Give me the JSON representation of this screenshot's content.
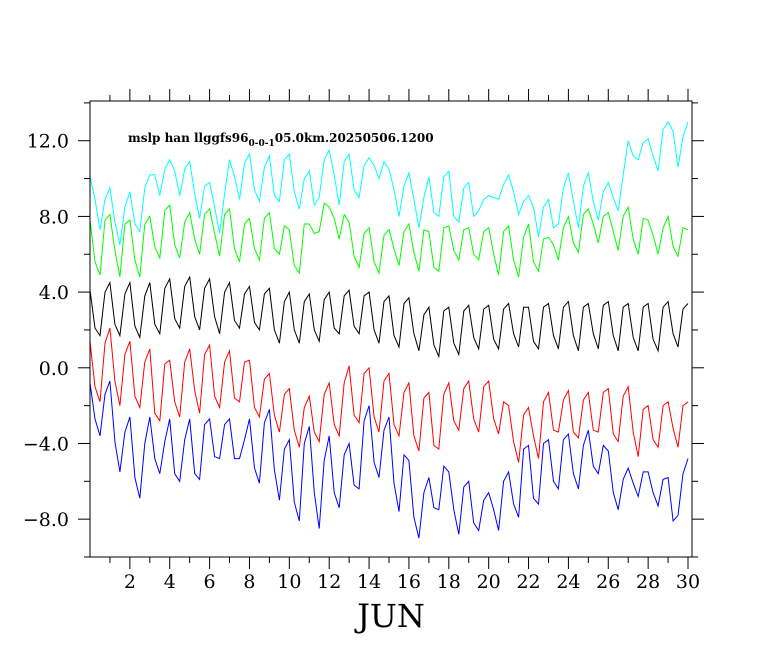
{
  "chart_data": {
    "type": "line",
    "title": "mslp han llggfs96",
    "title_subscript": "0-0-1",
    "title_suffix": "05.0km.20250506.1200",
    "xlabel": "JUN",
    "ylabel": "",
    "xlim": [
      0,
      30.2
    ],
    "ylim": [
      -10,
      14.1
    ],
    "x_ticks": [
      2,
      4,
      6,
      8,
      10,
      12,
      14,
      16,
      18,
      20,
      22,
      24,
      26,
      28,
      30
    ],
    "x_tick_labels": [
      "2",
      "4",
      "6",
      "8",
      "10",
      "12",
      "14",
      "16",
      "18",
      "20",
      "22",
      "24",
      "26",
      "28",
      "30"
    ],
    "y_ticks": [
      -8,
      -4,
      0,
      4,
      8,
      12
    ],
    "y_tick_labels": [
      "−8.0",
      "−4.0",
      "0.0",
      "4.0",
      "8.0",
      "12.0"
    ],
    "grid": false,
    "legend": "none",
    "samples_per_day": 4,
    "series": [
      {
        "color": "#00ffff",
        "values": [
          10.1,
          8.9,
          7.3,
          8.9,
          9.5,
          7.7,
          6.5,
          8.5,
          9.3,
          7.6,
          7.2,
          9.5,
          10.2,
          10.2,
          9.1,
          10.5,
          11.0,
          10.4,
          9.1,
          10.5,
          10.9,
          9.2,
          7.9,
          9.6,
          9.8,
          8.5,
          7.1,
          9.2,
          11.0,
          10.1,
          8.9,
          10.8,
          11.3,
          9.4,
          8.8,
          10.6,
          11.2,
          9.1,
          8.8,
          11.0,
          11.3,
          9.3,
          8.4,
          10.0,
          10.4,
          8.6,
          9.0,
          11.0,
          11.5,
          10.2,
          8.6,
          10.9,
          11.3,
          9.4,
          9.0,
          10.7,
          11.1,
          10.7,
          10.0,
          10.9,
          10.5,
          9.4,
          8.0,
          9.6,
          10.3,
          8.9,
          7.4,
          9.0,
          10.1,
          8.2,
          8.0,
          10.1,
          10.4,
          8.0,
          7.7,
          9.5,
          9.8,
          8.0,
          8.3,
          8.9,
          9.1,
          9.0,
          8.9,
          9.7,
          10.2,
          9.3,
          8.1,
          8.8,
          9.1,
          8.5,
          6.9,
          8.5,
          8.9,
          7.4,
          7.6,
          9.5,
          10.3,
          8.8,
          7.4,
          9.6,
          10.3,
          8.8,
          7.8,
          9.3,
          9.8,
          9.0,
          8.3,
          10.2,
          12.0,
          11.2,
          11.0,
          11.9,
          12.1,
          11.2,
          10.4,
          12.6,
          13.0,
          12.5,
          10.6,
          12.2,
          13.0
        ]
      },
      {
        "color": "#00ff00",
        "values": [
          7.8,
          5.6,
          4.9,
          7.8,
          8.1,
          6.2,
          4.8,
          7.6,
          7.8,
          5.7,
          4.8,
          7.6,
          8.0,
          6.4,
          5.8,
          8.3,
          8.6,
          6.5,
          5.8,
          7.7,
          8.2,
          6.8,
          6.0,
          8.1,
          8.4,
          7.1,
          5.9,
          8.1,
          8.4,
          6.3,
          5.6,
          7.6,
          7.9,
          6.3,
          5.7,
          7.9,
          8.2,
          6.3,
          6.0,
          7.5,
          7.3,
          5.4,
          5.0,
          7.6,
          7.6,
          7.1,
          7.2,
          8.7,
          8.5,
          7.9,
          6.8,
          8.1,
          7.7,
          5.9,
          5.3,
          7.1,
          7.4,
          5.6,
          5.0,
          7.0,
          7.3,
          6.3,
          5.4,
          7.2,
          7.6,
          6.1,
          5.1,
          7.3,
          7.2,
          5.3,
          5.1,
          7.4,
          7.5,
          6.2,
          5.7,
          7.3,
          7.4,
          6.0,
          5.7,
          7.2,
          7.4,
          6.0,
          4.9,
          7.2,
          7.5,
          5.7,
          4.8,
          6.9,
          7.6,
          5.6,
          5.1,
          6.8,
          6.9,
          6.5,
          5.7,
          7.4,
          8.0,
          6.6,
          6.1,
          8.1,
          8.4,
          7.6,
          6.6,
          8.0,
          8.2,
          7.2,
          6.2,
          8.0,
          8.5,
          6.8,
          6.0,
          7.9,
          7.8,
          7.0,
          6.0,
          7.4,
          8.0,
          6.4,
          5.9,
          7.4,
          7.3
        ]
      },
      {
        "color": "#000000",
        "values": [
          4.1,
          2.1,
          1.7,
          4.0,
          4.5,
          2.3,
          1.7,
          3.9,
          4.5,
          2.2,
          1.6,
          3.8,
          4.5,
          2.3,
          1.8,
          4.2,
          4.7,
          2.6,
          2.1,
          4.3,
          4.8,
          2.7,
          2.0,
          4.2,
          4.7,
          2.7,
          1.8,
          4.0,
          4.5,
          2.5,
          2.1,
          3.9,
          4.3,
          2.4,
          2.0,
          3.9,
          4.2,
          2.0,
          1.3,
          3.5,
          4.0,
          2.0,
          1.3,
          3.5,
          3.9,
          2.0,
          1.4,
          3.6,
          4.0,
          2.1,
          1.8,
          3.8,
          4.1,
          2.2,
          1.8,
          3.8,
          4.0,
          2.0,
          1.3,
          3.5,
          3.8,
          1.7,
          1.1,
          3.4,
          3.7,
          1.8,
          0.9,
          2.8,
          3.2,
          1.2,
          0.6,
          3.0,
          3.2,
          1.3,
          0.7,
          3.0,
          3.3,
          1.6,
          1.0,
          3.1,
          3.3,
          1.5,
          1.0,
          3.1,
          3.4,
          1.8,
          1.1,
          3.2,
          3.2,
          1.4,
          1.0,
          3.2,
          3.4,
          1.7,
          1.0,
          3.2,
          3.5,
          1.7,
          0.9,
          3.2,
          3.4,
          1.8,
          1.0,
          3.3,
          3.5,
          1.7,
          0.9,
          3.2,
          3.4,
          1.6,
          0.9,
          3.2,
          3.4,
          1.5,
          0.9,
          3.2,
          3.5,
          1.8,
          1.1,
          3.1,
          3.4
        ]
      },
      {
        "color": "#ff0000",
        "values": [
          1.4,
          -1.0,
          -1.8,
          1.3,
          2.1,
          -0.7,
          -2.0,
          0.7,
          1.4,
          -1.5,
          -2.1,
          0.3,
          1.0,
          -2.4,
          -2.8,
          0.2,
          0.4,
          -1.8,
          -2.6,
          0.3,
          1.0,
          -1.2,
          -2.4,
          0.7,
          1.2,
          -1.5,
          -2.1,
          0.3,
          0.9,
          -1.6,
          -1.8,
          0.3,
          0.4,
          -2.1,
          -2.6,
          -0.6,
          -0.3,
          -2.5,
          -3.4,
          -1.4,
          -1.1,
          -3.3,
          -4.2,
          -2.1,
          -1.5,
          -3.4,
          -3.9,
          -1.4,
          -0.8,
          -3.0,
          -3.6,
          -0.8,
          0.1,
          -2.5,
          -2.9,
          -0.3,
          0.0,
          -2.6,
          -3.4,
          -0.7,
          -0.3,
          -3.0,
          -3.6,
          -1.3,
          -0.8,
          -3.6,
          -4.4,
          -1.6,
          -1.3,
          -4.1,
          -4.3,
          -1.4,
          -0.8,
          -2.8,
          -3.3,
          -1.1,
          -0.7,
          -2.7,
          -3.4,
          -1.0,
          -0.7,
          -2.7,
          -3.5,
          -1.8,
          -2.0,
          -3.9,
          -5.0,
          -2.5,
          -2.1,
          -3.6,
          -4.8,
          -1.8,
          -1.3,
          -3.3,
          -3.4,
          -1.7,
          -1.2,
          -3.4,
          -3.7,
          -1.7,
          -1.3,
          -3.3,
          -3.4,
          -1.3,
          -1.1,
          -3.5,
          -3.9,
          -1.5,
          -1.0,
          -3.4,
          -4.7,
          -2.2,
          -2.0,
          -3.8,
          -4.2,
          -2.0,
          -1.8,
          -3.2,
          -4.2,
          -2.0,
          -1.8
        ]
      },
      {
        "color": "#0000ff",
        "values": [
          -0.8,
          -2.7,
          -3.6,
          -1.4,
          -0.7,
          -3.9,
          -5.5,
          -3.4,
          -2.6,
          -5.8,
          -6.9,
          -4.0,
          -2.6,
          -4.8,
          -5.6,
          -3.9,
          -2.7,
          -5.6,
          -6.0,
          -3.8,
          -2.7,
          -5.6,
          -5.9,
          -3.0,
          -2.7,
          -4.7,
          -4.8,
          -3.0,
          -2.7,
          -4.8,
          -4.8,
          -3.8,
          -2.7,
          -5.3,
          -6.1,
          -2.9,
          -2.2,
          -5.4,
          -7.0,
          -4.3,
          -3.8,
          -7.1,
          -8.1,
          -4.0,
          -3.1,
          -6.6,
          -8.5,
          -4.9,
          -3.6,
          -6.6,
          -7.4,
          -4.6,
          -4.0,
          -6.2,
          -6.4,
          -2.8,
          -2.0,
          -5.0,
          -5.8,
          -3.3,
          -2.6,
          -6.1,
          -7.6,
          -4.6,
          -4.9,
          -7.9,
          -9.0,
          -6.6,
          -5.8,
          -7.4,
          -7.5,
          -5.2,
          -5.5,
          -7.5,
          -8.8,
          -6.3,
          -6.0,
          -8.2,
          -8.6,
          -7.0,
          -6.6,
          -7.5,
          -8.6,
          -6.0,
          -5.5,
          -7.2,
          -7.9,
          -4.3,
          -4.1,
          -6.9,
          -7.2,
          -4.0,
          -3.8,
          -6.0,
          -6.4,
          -3.8,
          -3.5,
          -5.6,
          -6.4,
          -4.1,
          -3.3,
          -5.2,
          -5.6,
          -4.1,
          -4.4,
          -6.6,
          -7.5,
          -5.9,
          -5.3,
          -6.1,
          -6.8,
          -5.5,
          -5.5,
          -6.6,
          -7.3,
          -5.9,
          -5.8,
          -8.1,
          -7.8,
          -5.6,
          -4.8
        ]
      }
    ]
  }
}
